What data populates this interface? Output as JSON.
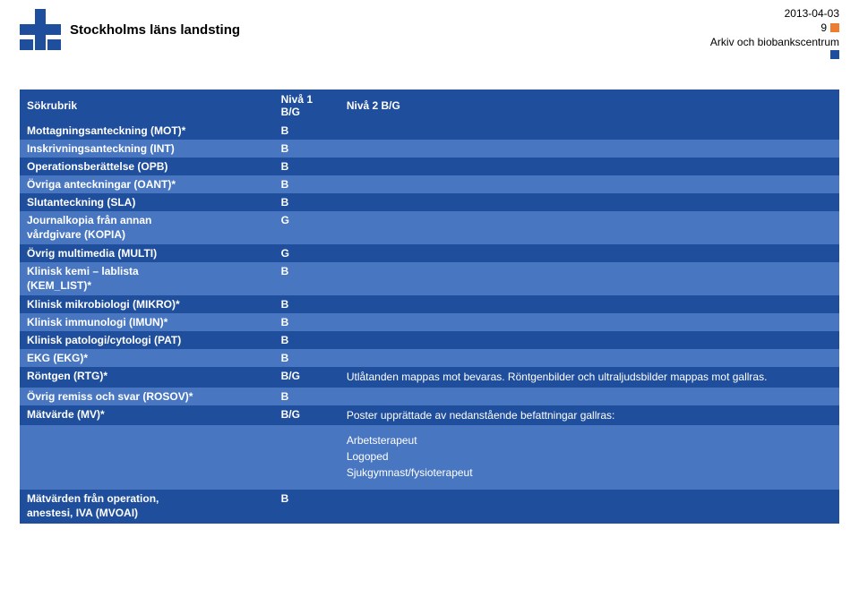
{
  "header": {
    "date": "2013-04-03",
    "page": "9",
    "subtitle": "Arkiv och biobankscentrum",
    "org_name": "Stockholms läns landsting",
    "logo_color": "#1f4e9c",
    "orange": "#ed7d31"
  },
  "table": {
    "columns": [
      "Sökrubrik",
      "Nivå 1 B/G",
      "Nivå 2 B/G"
    ],
    "rows": [
      {
        "c0": "Mottagningsanteckning (MOT)*",
        "c1": "B",
        "c2": "",
        "shade": "dark"
      },
      {
        "c0": "Inskrivningsanteckning (INT)",
        "c1": "B",
        "c2": "",
        "shade": "light"
      },
      {
        "c0": "Operationsberättelse (OPB)",
        "c1": "B",
        "c2": "",
        "shade": "dark"
      },
      {
        "c0": "Övriga anteckningar (OANT)*",
        "c1": "B",
        "c2": "",
        "shade": "light"
      },
      {
        "c0": "Slutanteckning (SLA)",
        "c1": "B",
        "c2": "",
        "shade": "dark"
      },
      {
        "c0": "Journalkopia från annan\nvårdgivare (KOPIA)",
        "c1": "G",
        "c2": "",
        "shade": "light"
      },
      {
        "c0": "Övrig multimedia (MULTI)",
        "c1": "G",
        "c2": "",
        "shade": "dark"
      },
      {
        "c0": "Klinisk kemi – lablista\n(KEM_LIST)*",
        "c1": "B",
        "c2": "",
        "shade": "light"
      },
      {
        "c0": "Klinisk mikrobiologi (MIKRO)*",
        "c1": "B",
        "c2": "",
        "shade": "dark"
      },
      {
        "c0": "Klinisk immunologi (IMUN)*",
        "c1": "B",
        "c2": "",
        "shade": "light"
      },
      {
        "c0": "Klinisk patologi/cytologi (PAT)",
        "c1": "B",
        "c2": "",
        "shade": "dark"
      },
      {
        "c0": "EKG (EKG)*",
        "c1": "B",
        "c2": "",
        "shade": "light"
      },
      {
        "c0": "Röntgen (RTG)*",
        "c1": "B/G",
        "c2": "Utlåtanden mappas mot bevaras. Röntgenbilder och ultraljudsbilder mappas mot gallras.",
        "shade": "dark"
      },
      {
        "c0": "Övrig remiss och svar (ROSOV)*",
        "c1": "B",
        "c2": "",
        "shade": "light"
      },
      {
        "c0": "Mätvärde (MV)*",
        "c1": "B/G",
        "c2": "Poster upprättade av nedanstående befattningar gallras:",
        "shade": "dark"
      }
    ],
    "sublist": [
      "Arbetsterapeut",
      "Logoped",
      "Sjukgymnast/fysioterapeut"
    ],
    "bottom_row": {
      "c0": "Mätvärden från operation,\nanestesi, IVA (MVOAI)",
      "c1": "B",
      "c2": "",
      "shade": "dark"
    }
  }
}
